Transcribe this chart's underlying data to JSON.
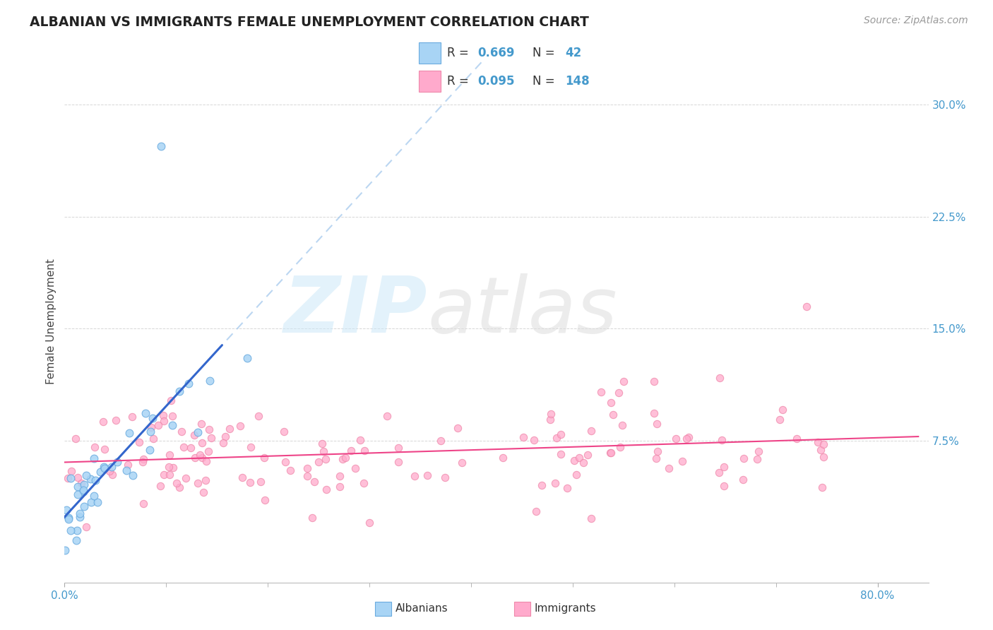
{
  "title": "ALBANIAN VS IMMIGRANTS FEMALE UNEMPLOYMENT CORRELATION CHART",
  "source": "Source: ZipAtlas.com",
  "ylabel": "Female Unemployment",
  "yticks_labels": [
    "7.5%",
    "15.0%",
    "22.5%",
    "30.0%"
  ],
  "ytick_vals": [
    0.075,
    0.15,
    0.225,
    0.3
  ],
  "xlim": [
    0.0,
    0.85
  ],
  "ylim": [
    -0.02,
    0.33
  ],
  "albanian_R": 0.669,
  "albanian_N": 42,
  "immigrant_R": 0.095,
  "immigrant_N": 148,
  "albanian_dot_color": "#A8D4F5",
  "albanian_edge_color": "#6AABDF",
  "albanian_line_color": "#3366CC",
  "albanian_dash_color": "#AACCEE",
  "immigrant_dot_color": "#FFAACC",
  "immigrant_edge_color": "#EE88AA",
  "immigrant_line_color": "#EE4488",
  "background_color": "#FFFFFF",
  "grid_color": "#CCCCCC",
  "title_color": "#222222",
  "source_color": "#999999",
  "ylabel_color": "#444444",
  "tick_color": "#4499CC",
  "legend_bg": "#FFFFFF"
}
